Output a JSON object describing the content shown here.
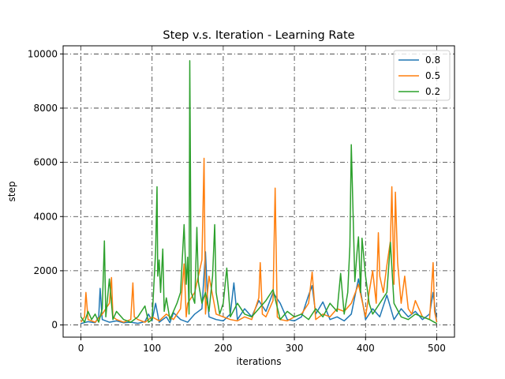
{
  "chart_data": {
    "type": "line",
    "title": "Step v.s. Iteration - Learning Rate",
    "xlabel": "iterations",
    "ylabel": "step",
    "xlim": [
      -25,
      525
    ],
    "ylim": [
      -450,
      10300
    ],
    "xticks": [
      0,
      100,
      200,
      300,
      400,
      500
    ],
    "yticks": [
      0,
      2000,
      4000,
      6000,
      8000,
      10000
    ],
    "grid": true,
    "grid_style": "dashdot",
    "legend_position": "top-right",
    "series": [
      {
        "name": "0.8",
        "color": "#1f77b4",
        "x": [
          0,
          10,
          20,
          25,
          27,
          30,
          40,
          50,
          60,
          70,
          80,
          90,
          95,
          100,
          105,
          110,
          120,
          125,
          130,
          140,
          150,
          160,
          170,
          175,
          178,
          180,
          190,
          200,
          210,
          215,
          220,
          230,
          240,
          250,
          260,
          270,
          280,
          290,
          300,
          310,
          320,
          325,
          330,
          340,
          350,
          360,
          370,
          380,
          390,
          400,
          410,
          420,
          430,
          440,
          450,
          460,
          470,
          480,
          490,
          495,
          500
        ],
        "values": [
          50,
          120,
          80,
          300,
          1350,
          200,
          100,
          150,
          80,
          100,
          60,
          120,
          400,
          150,
          800,
          100,
          300,
          80,
          450,
          200,
          100,
          400,
          600,
          2700,
          900,
          300,
          200,
          150,
          400,
          1550,
          200,
          600,
          300,
          900,
          500,
          1200,
          800,
          200,
          150,
          300,
          1100,
          1450,
          400,
          850,
          200,
          300,
          150,
          400,
          1700,
          200,
          600,
          300,
          1100,
          200,
          600,
          300,
          500,
          200,
          400,
          1200,
          100
        ]
      },
      {
        "name": "0.5",
        "color": "#ff7f0e",
        "x": [
          0,
          5,
          7,
          10,
          20,
          30,
          40,
          43,
          45,
          50,
          60,
          70,
          73,
          75,
          80,
          90,
          100,
          110,
          120,
          130,
          140,
          145,
          148,
          150,
          160,
          170,
          173,
          175,
          180,
          190,
          200,
          210,
          220,
          230,
          240,
          250,
          252,
          255,
          260,
          270,
          273,
          276,
          280,
          290,
          300,
          310,
          320,
          325,
          330,
          340,
          350,
          360,
          370,
          380,
          390,
          400,
          405,
          410,
          415,
          418,
          420,
          425,
          430,
          435,
          437,
          440,
          442,
          445,
          450,
          455,
          460,
          465,
          470,
          480,
          490,
          495,
          497,
          500
        ],
        "values": [
          100,
          300,
          1200,
          200,
          100,
          400,
          800,
          1750,
          300,
          200,
          100,
          200,
          1550,
          300,
          200,
          100,
          300,
          150,
          400,
          200,
          600,
          2250,
          300,
          800,
          1200,
          2400,
          6150,
          400,
          1800,
          400,
          300,
          200,
          150,
          300,
          200,
          1000,
          2300,
          400,
          300,
          900,
          5050,
          300,
          200,
          150,
          300,
          400,
          800,
          1950,
          200,
          400,
          300,
          600,
          500,
          800,
          1500,
          300,
          1200,
          2000,
          800,
          3400,
          1800,
          1200,
          2200,
          3100,
          5100,
          1500,
          4900,
          2300,
          800,
          1800,
          600,
          400,
          900,
          300,
          200,
          2300,
          500,
          100
        ]
      },
      {
        "name": "0.2",
        "color": "#2ca02c",
        "x": [
          0,
          5,
          10,
          15,
          20,
          25,
          30,
          33,
          35,
          40,
          45,
          50,
          60,
          70,
          80,
          90,
          95,
          100,
          105,
          107,
          108,
          110,
          112,
          115,
          117,
          120,
          125,
          130,
          135,
          140,
          145,
          148,
          150,
          152,
          153,
          155,
          160,
          163,
          165,
          170,
          175,
          180,
          185,
          188,
          190,
          195,
          200,
          205,
          210,
          220,
          230,
          240,
          250,
          260,
          270,
          280,
          290,
          300,
          310,
          320,
          330,
          340,
          350,
          360,
          365,
          370,
          375,
          378,
          380,
          385,
          388,
          390,
          393,
          395,
          400,
          405,
          410,
          420,
          430,
          435,
          440,
          450,
          460,
          470,
          480,
          490,
          500
        ],
        "values": [
          300,
          100,
          500,
          200,
          400,
          100,
          600,
          3100,
          300,
          1700,
          200,
          500,
          200,
          100,
          300,
          700,
          100,
          200,
          2700,
          5100,
          1800,
          2400,
          1200,
          2800,
          500,
          1000,
          200,
          500,
          800,
          1200,
          3700,
          1500,
          2500,
          400,
          9750,
          1200,
          800,
          3600,
          1600,
          800,
          1200,
          500,
          1800,
          3700,
          1200,
          400,
          800,
          2100,
          300,
          800,
          400,
          300,
          600,
          900,
          1300,
          200,
          500,
          300,
          400,
          200,
          600,
          300,
          800,
          500,
          1900,
          400,
          1200,
          2900,
          6650,
          1600,
          2700,
          3250,
          1200,
          3200,
          1800,
          800,
          400,
          800,
          1200,
          3050,
          800,
          300,
          200,
          400,
          300,
          200,
          50
        ]
      }
    ]
  }
}
